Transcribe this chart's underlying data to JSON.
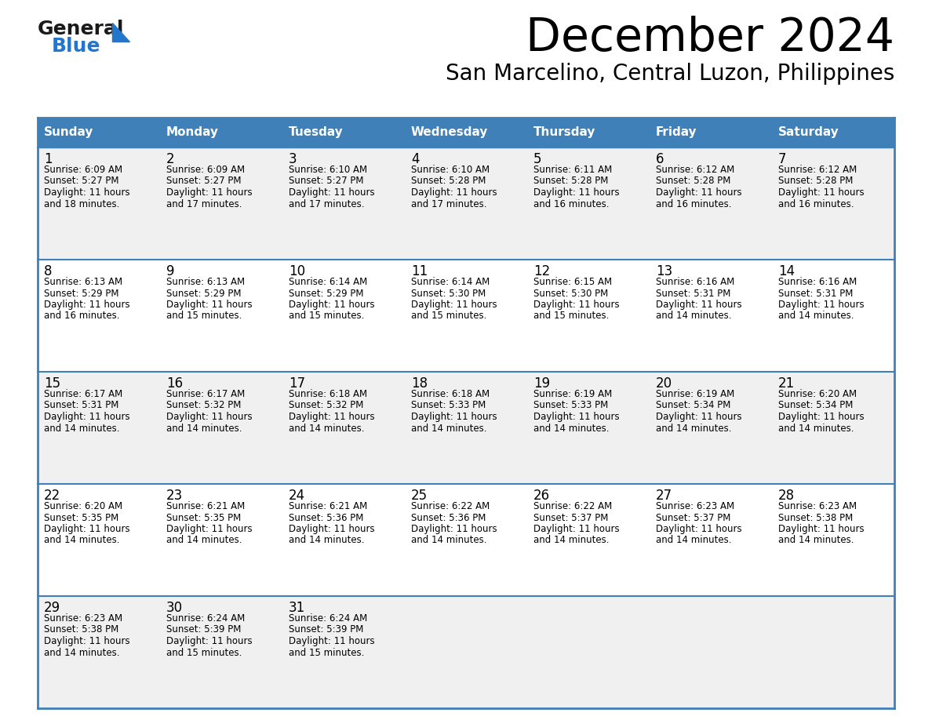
{
  "title": "December 2024",
  "subtitle": "San Marcelino, Central Luzon, Philippines",
  "header_bg_color": "#4080B8",
  "header_text_color": "#FFFFFF",
  "row_bg_even": "#F0F0F0",
  "row_bg_odd": "#FFFFFF",
  "border_color": "#4080B8",
  "day_headers": [
    "Sunday",
    "Monday",
    "Tuesday",
    "Wednesday",
    "Thursday",
    "Friday",
    "Saturday"
  ],
  "days": [
    {
      "day": 1,
      "col": 0,
      "row": 0,
      "sunrise": "6:09 AM",
      "sunset": "5:27 PM",
      "daylight_hours": "11 hours",
      "daylight_mins": "and 18 minutes."
    },
    {
      "day": 2,
      "col": 1,
      "row": 0,
      "sunrise": "6:09 AM",
      "sunset": "5:27 PM",
      "daylight_hours": "11 hours",
      "daylight_mins": "and 17 minutes."
    },
    {
      "day": 3,
      "col": 2,
      "row": 0,
      "sunrise": "6:10 AM",
      "sunset": "5:27 PM",
      "daylight_hours": "11 hours",
      "daylight_mins": "and 17 minutes."
    },
    {
      "day": 4,
      "col": 3,
      "row": 0,
      "sunrise": "6:10 AM",
      "sunset": "5:28 PM",
      "daylight_hours": "11 hours",
      "daylight_mins": "and 17 minutes."
    },
    {
      "day": 5,
      "col": 4,
      "row": 0,
      "sunrise": "6:11 AM",
      "sunset": "5:28 PM",
      "daylight_hours": "11 hours",
      "daylight_mins": "and 16 minutes."
    },
    {
      "day": 6,
      "col": 5,
      "row": 0,
      "sunrise": "6:12 AM",
      "sunset": "5:28 PM",
      "daylight_hours": "11 hours",
      "daylight_mins": "and 16 minutes."
    },
    {
      "day": 7,
      "col": 6,
      "row": 0,
      "sunrise": "6:12 AM",
      "sunset": "5:28 PM",
      "daylight_hours": "11 hours",
      "daylight_mins": "and 16 minutes."
    },
    {
      "day": 8,
      "col": 0,
      "row": 1,
      "sunrise": "6:13 AM",
      "sunset": "5:29 PM",
      "daylight_hours": "11 hours",
      "daylight_mins": "and 16 minutes."
    },
    {
      "day": 9,
      "col": 1,
      "row": 1,
      "sunrise": "6:13 AM",
      "sunset": "5:29 PM",
      "daylight_hours": "11 hours",
      "daylight_mins": "and 15 minutes."
    },
    {
      "day": 10,
      "col": 2,
      "row": 1,
      "sunrise": "6:14 AM",
      "sunset": "5:29 PM",
      "daylight_hours": "11 hours",
      "daylight_mins": "and 15 minutes."
    },
    {
      "day": 11,
      "col": 3,
      "row": 1,
      "sunrise": "6:14 AM",
      "sunset": "5:30 PM",
      "daylight_hours": "11 hours",
      "daylight_mins": "and 15 minutes."
    },
    {
      "day": 12,
      "col": 4,
      "row": 1,
      "sunrise": "6:15 AM",
      "sunset": "5:30 PM",
      "daylight_hours": "11 hours",
      "daylight_mins": "and 15 minutes."
    },
    {
      "day": 13,
      "col": 5,
      "row": 1,
      "sunrise": "6:16 AM",
      "sunset": "5:31 PM",
      "daylight_hours": "11 hours",
      "daylight_mins": "and 14 minutes."
    },
    {
      "day": 14,
      "col": 6,
      "row": 1,
      "sunrise": "6:16 AM",
      "sunset": "5:31 PM",
      "daylight_hours": "11 hours",
      "daylight_mins": "and 14 minutes."
    },
    {
      "day": 15,
      "col": 0,
      "row": 2,
      "sunrise": "6:17 AM",
      "sunset": "5:31 PM",
      "daylight_hours": "11 hours",
      "daylight_mins": "and 14 minutes."
    },
    {
      "day": 16,
      "col": 1,
      "row": 2,
      "sunrise": "6:17 AM",
      "sunset": "5:32 PM",
      "daylight_hours": "11 hours",
      "daylight_mins": "and 14 minutes."
    },
    {
      "day": 17,
      "col": 2,
      "row": 2,
      "sunrise": "6:18 AM",
      "sunset": "5:32 PM",
      "daylight_hours": "11 hours",
      "daylight_mins": "and 14 minutes."
    },
    {
      "day": 18,
      "col": 3,
      "row": 2,
      "sunrise": "6:18 AM",
      "sunset": "5:33 PM",
      "daylight_hours": "11 hours",
      "daylight_mins": "and 14 minutes."
    },
    {
      "day": 19,
      "col": 4,
      "row": 2,
      "sunrise": "6:19 AM",
      "sunset": "5:33 PM",
      "daylight_hours": "11 hours",
      "daylight_mins": "and 14 minutes."
    },
    {
      "day": 20,
      "col": 5,
      "row": 2,
      "sunrise": "6:19 AM",
      "sunset": "5:34 PM",
      "daylight_hours": "11 hours",
      "daylight_mins": "and 14 minutes."
    },
    {
      "day": 21,
      "col": 6,
      "row": 2,
      "sunrise": "6:20 AM",
      "sunset": "5:34 PM",
      "daylight_hours": "11 hours",
      "daylight_mins": "and 14 minutes."
    },
    {
      "day": 22,
      "col": 0,
      "row": 3,
      "sunrise": "6:20 AM",
      "sunset": "5:35 PM",
      "daylight_hours": "11 hours",
      "daylight_mins": "and 14 minutes."
    },
    {
      "day": 23,
      "col": 1,
      "row": 3,
      "sunrise": "6:21 AM",
      "sunset": "5:35 PM",
      "daylight_hours": "11 hours",
      "daylight_mins": "and 14 minutes."
    },
    {
      "day": 24,
      "col": 2,
      "row": 3,
      "sunrise": "6:21 AM",
      "sunset": "5:36 PM",
      "daylight_hours": "11 hours",
      "daylight_mins": "and 14 minutes."
    },
    {
      "day": 25,
      "col": 3,
      "row": 3,
      "sunrise": "6:22 AM",
      "sunset": "5:36 PM",
      "daylight_hours": "11 hours",
      "daylight_mins": "and 14 minutes."
    },
    {
      "day": 26,
      "col": 4,
      "row": 3,
      "sunrise": "6:22 AM",
      "sunset": "5:37 PM",
      "daylight_hours": "11 hours",
      "daylight_mins": "and 14 minutes."
    },
    {
      "day": 27,
      "col": 5,
      "row": 3,
      "sunrise": "6:23 AM",
      "sunset": "5:37 PM",
      "daylight_hours": "11 hours",
      "daylight_mins": "and 14 minutes."
    },
    {
      "day": 28,
      "col": 6,
      "row": 3,
      "sunrise": "6:23 AM",
      "sunset": "5:38 PM",
      "daylight_hours": "11 hours",
      "daylight_mins": "and 14 minutes."
    },
    {
      "day": 29,
      "col": 0,
      "row": 4,
      "sunrise": "6:23 AM",
      "sunset": "5:38 PM",
      "daylight_hours": "11 hours",
      "daylight_mins": "and 14 minutes."
    },
    {
      "day": 30,
      "col": 1,
      "row": 4,
      "sunrise": "6:24 AM",
      "sunset": "5:39 PM",
      "daylight_hours": "11 hours",
      "daylight_mins": "and 15 minutes."
    },
    {
      "day": 31,
      "col": 2,
      "row": 4,
      "sunrise": "6:24 AM",
      "sunset": "5:39 PM",
      "daylight_hours": "11 hours",
      "daylight_mins": "and 15 minutes."
    }
  ],
  "logo_general_color": "#1a1a1a",
  "logo_blue_color": "#2277CC",
  "logo_triangle_color": "#2277CC"
}
